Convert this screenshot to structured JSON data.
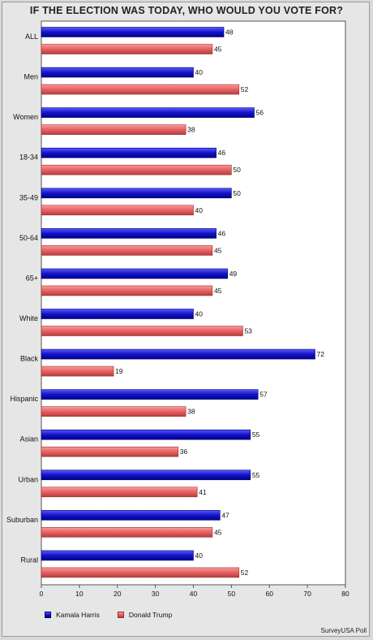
{
  "chart_data": {
    "type": "bar",
    "orientation": "horizontal",
    "title": "IF THE ELECTION WAS TODAY, WHO WOULD YOU VOTE FOR?",
    "categories": [
      "ALL",
      "Men",
      "Women",
      "18-34",
      "35-49",
      "50-64",
      "65+",
      "White",
      "Black",
      "Hispanic",
      "Asian",
      "Urban",
      "Suburban",
      "Rural"
    ],
    "series": [
      {
        "name": "Kamala Harris",
        "color": "#1f1fcf",
        "values": [
          48,
          40,
          56,
          46,
          50,
          46,
          49,
          40,
          72,
          57,
          55,
          55,
          47,
          40
        ]
      },
      {
        "name": "Donald Trump",
        "color": "#e46b6b",
        "values": [
          45,
          52,
          38,
          50,
          40,
          45,
          45,
          53,
          19,
          38,
          36,
          41,
          45,
          52
        ]
      }
    ],
    "xlim": [
      0,
      80
    ],
    "xticks": [
      0,
      10,
      20,
      30,
      40,
      50,
      60,
      70,
      80
    ],
    "grid": false,
    "legend_position": "bottom-left",
    "source": "SurveyUSA Poll"
  }
}
